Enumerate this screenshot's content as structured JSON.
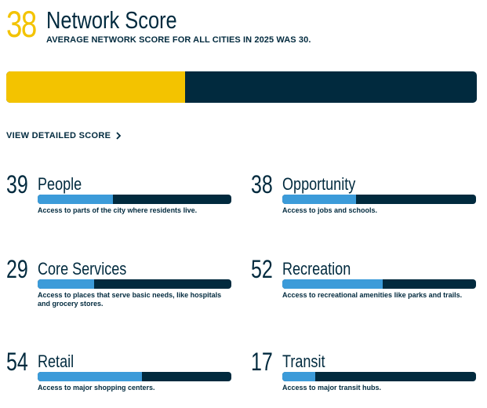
{
  "header": {
    "score": "38",
    "title": "Network Score",
    "subtitle": "AVERAGE NETWORK SCORE FOR ALL CITIES IN 2025 WAS 30.",
    "score_value": 38,
    "bar_max": 100
  },
  "detail_link": {
    "label": "VIEW DETAILED SCORE",
    "icon": "chevron-right-icon"
  },
  "colors": {
    "accent": "#f3c300",
    "navy": "#012a3e",
    "bar_fill": "#3c9bd9"
  },
  "metrics": [
    {
      "score": "39",
      "value": 39,
      "name": "People",
      "description": "Access to parts of the city where residents live."
    },
    {
      "score": "38",
      "value": 38,
      "name": "Opportunity",
      "description": "Access to jobs and schools."
    },
    {
      "score": "29",
      "value": 29,
      "name": "Core Services",
      "description": "Access to places that serve basic needs, like hospitals and grocery stores."
    },
    {
      "score": "52",
      "value": 52,
      "name": "Recreation",
      "description": "Access to recreational amenities like parks and trails."
    },
    {
      "score": "54",
      "value": 54,
      "name": "Retail",
      "description": "Access to major shopping centers."
    },
    {
      "score": "17",
      "value": 17,
      "name": "Transit",
      "description": "Access to major transit hubs."
    }
  ]
}
